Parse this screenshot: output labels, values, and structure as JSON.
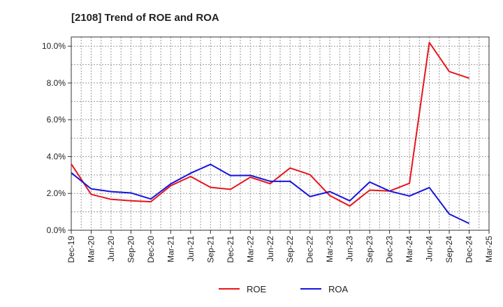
{
  "chart_data": {
    "type": "line",
    "title": "[2108]  Trend of ROE and ROA",
    "xlabel": "",
    "ylabel": "",
    "categories": [
      "Dec-19",
      "Mar-20",
      "Jun-20",
      "Sep-20",
      "Dec-20",
      "Mar-21",
      "Jun-21",
      "Sep-21",
      "Dec-21",
      "Mar-22",
      "Jun-22",
      "Sep-22",
      "Dec-22",
      "Mar-23",
      "Jun-23",
      "Sep-23",
      "Dec-23",
      "Mar-24",
      "Jun-24",
      "Sep-24",
      "Dec-24",
      "Mar-25"
    ],
    "y_tick_labels": [
      "0.0%",
      "2.0%",
      "4.0%",
      "6.0%",
      "8.0%",
      "10.0%"
    ],
    "y_ticks": [
      0,
      2,
      4,
      6,
      8,
      10
    ],
    "ylim": [
      0,
      10.5
    ],
    "grid": true,
    "legend_position": "bottom-center",
    "series": [
      {
        "name": "ROE",
        "color": "#e8141a",
        "values": [
          3.6,
          1.95,
          1.68,
          1.6,
          1.55,
          2.42,
          2.92,
          2.33,
          2.22,
          2.88,
          2.53,
          3.38,
          3.02,
          1.88,
          1.32,
          2.18,
          2.13,
          2.55,
          10.2,
          8.62,
          8.26,
          null
        ]
      },
      {
        "name": "ROA",
        "color": "#1414e0",
        "values": [
          3.12,
          2.25,
          2.1,
          2.03,
          1.7,
          2.52,
          3.1,
          3.58,
          2.97,
          2.98,
          2.66,
          2.66,
          1.83,
          2.1,
          1.6,
          2.62,
          2.13,
          1.86,
          2.32,
          0.88,
          0.37,
          null
        ]
      }
    ]
  }
}
